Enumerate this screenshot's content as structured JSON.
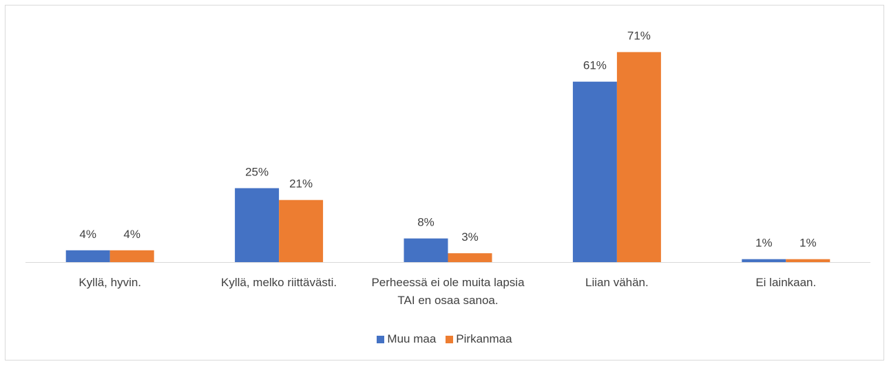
{
  "chart_data": {
    "type": "bar",
    "categories": [
      "Kyllä, hyvin.",
      "Kyllä, melko riittävästi.",
      "Perheessä ei ole muita lapsia TAI en osaa sanoa.",
      "Liian vähän.",
      "Ei lainkaan."
    ],
    "series": [
      {
        "name": "Muu maa",
        "color": "#4472c4",
        "values": [
          4,
          25,
          8,
          61,
          1
        ],
        "value_labels": [
          "4%",
          "25%",
          "8%",
          "61%",
          "1%"
        ]
      },
      {
        "name": "Pirkanmaa",
        "color": "#ed7d31",
        "values": [
          4,
          21,
          3,
          71,
          1
        ],
        "value_labels": [
          "4%",
          "21%",
          "3%",
          "71%",
          "1%"
        ]
      }
    ],
    "legend": "bottom"
  }
}
